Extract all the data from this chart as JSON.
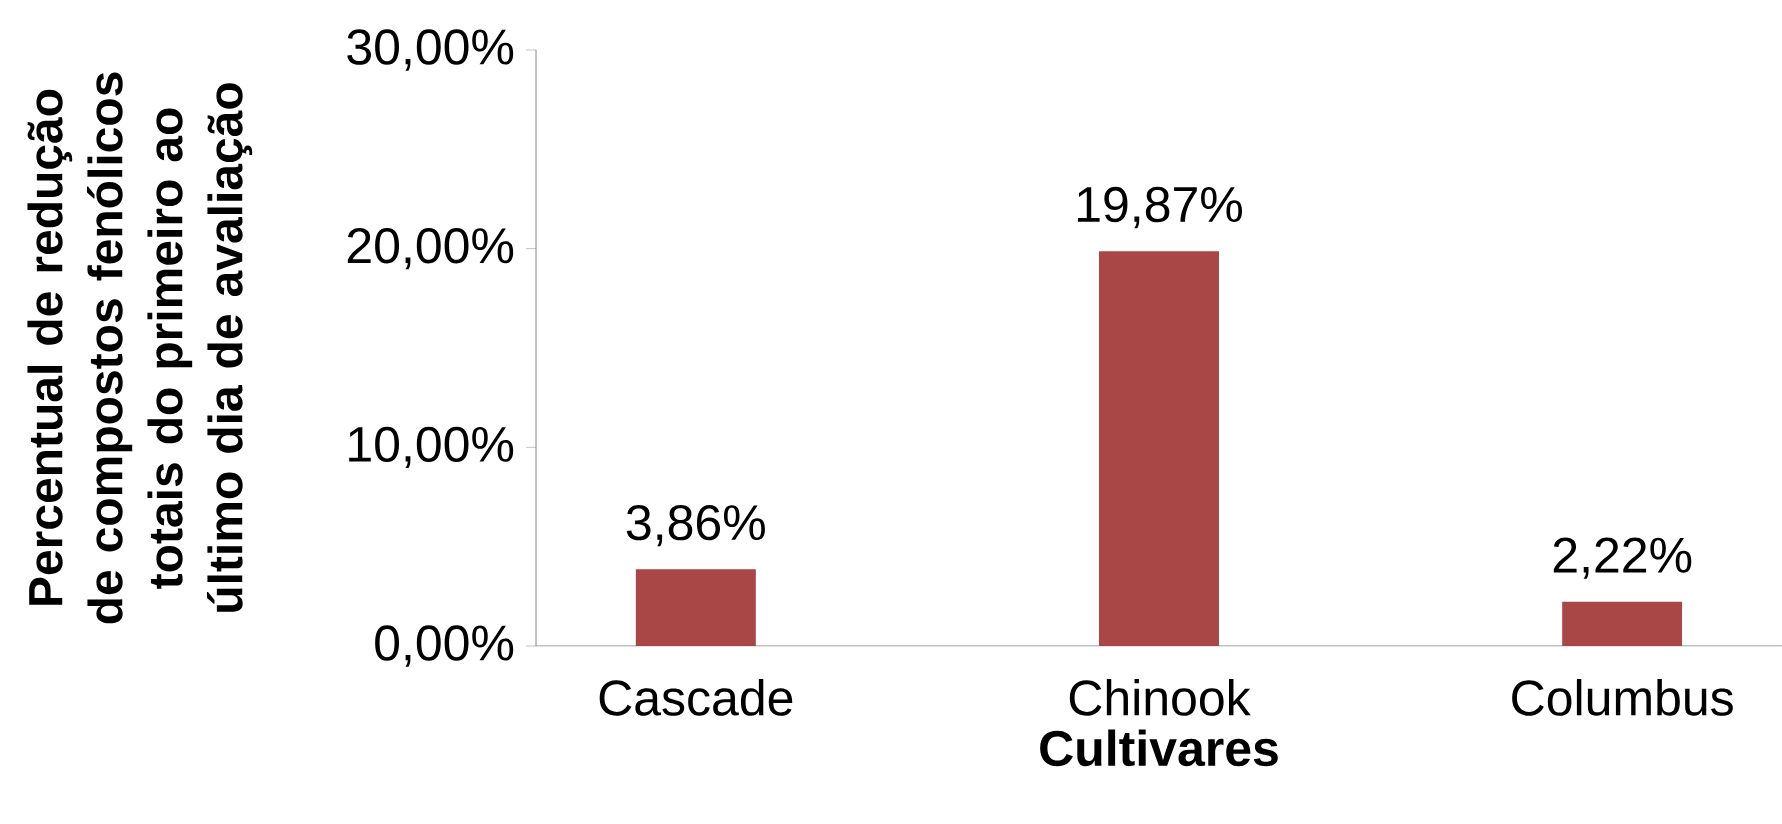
{
  "chart_data": {
    "type": "bar",
    "ylabel": "Percentual de redução de compostos fenólicos totais do primeiro ao último dia de avaliação",
    "xlabel": "Cultivares",
    "categories": [
      "Cascade",
      "Chinook",
      "Columbus"
    ],
    "values": [
      3.86,
      19.87,
      2.22
    ],
    "value_labels": [
      "3,86%",
      "19,87%",
      "2,22%"
    ],
    "color": "#a94646",
    "ylim": [
      0,
      30
    ],
    "yticks": [
      {
        "value": 0,
        "label": "0,00%"
      },
      {
        "value": 10,
        "label": "10,00%"
      },
      {
        "value": 20,
        "label": "20,00%"
      },
      {
        "value": 30,
        "label": "30,00%"
      }
    ],
    "grid": false
  }
}
